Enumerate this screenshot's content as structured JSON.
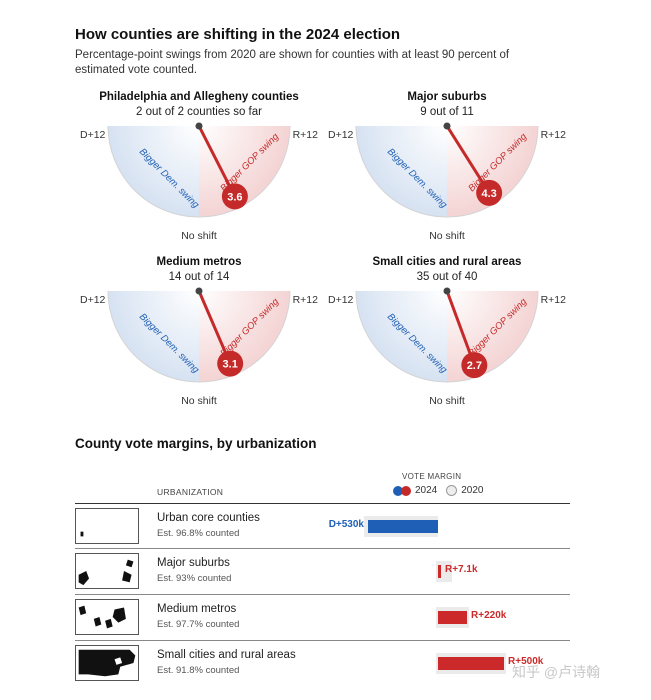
{
  "section1": {
    "title": "How counties are shifting in the 2024 election",
    "subtitle": "Percentage-point swings from 2020 are shown for counties with at least 90 percent of estimated vote counted."
  },
  "gauge_labels": {
    "left": "D+12",
    "right": "R+12",
    "no_shift": "No shift",
    "dem_arc": "Bigger Dem. swing",
    "gop_arc": "Bigger GOP swing"
  },
  "colors": {
    "dem": "#1f5fb5",
    "gop": "#c52a2a",
    "dem_light": "#d6e2f2",
    "gop_light": "#f4d3d3",
    "red_bar": "#cc2a2a",
    "blue_bar": "#1f5fb5"
  },
  "section2": {
    "title": "County vote margins, by urbanization",
    "vote_margin_label": "VOTE MARGIN",
    "urbanization_header": "URBANIZATION",
    "legend_2024": "2024",
    "legend_2020": "2020"
  },
  "chart_data": [
    {
      "type": "gauge",
      "title": "How counties are shifting in the 2024 election",
      "range": [
        -12,
        12
      ],
      "range_labels": [
        "D+12",
        "R+12"
      ],
      "center_label": "No shift",
      "series": [
        {
          "name": "Philadelphia and Allegheny counties",
          "count": "2 out of 2 counties so far",
          "value": 3.6
        },
        {
          "name": "Major suburbs",
          "count": "9 out of 11",
          "value": 4.3
        },
        {
          "name": "Medium metros",
          "count": "14 out of 14",
          "value": 3.1
        },
        {
          "name": "Small cities and rural areas",
          "count": "35 out of 40",
          "value": 2.7
        }
      ]
    },
    {
      "type": "bar",
      "title": "County vote margins, by urbanization",
      "xlabel": "VOTE MARGIN",
      "categories": [
        "Urban core counties",
        "Major suburbs",
        "Medium metros",
        "Small cities and rural areas"
      ],
      "estimates": [
        "Est. 96.8% counted",
        "Est. 93% counted",
        "Est. 97.7% counted",
        "Est. 91.8% counted"
      ],
      "series": [
        {
          "name": "2024",
          "values": [
            -530000,
            7100,
            220000,
            500000
          ],
          "labels": [
            "D+530k",
            "R+7.1k",
            "R+220k",
            "R+500k"
          ]
        }
      ]
    }
  ],
  "watermark": "知乎 @卢诗翰"
}
